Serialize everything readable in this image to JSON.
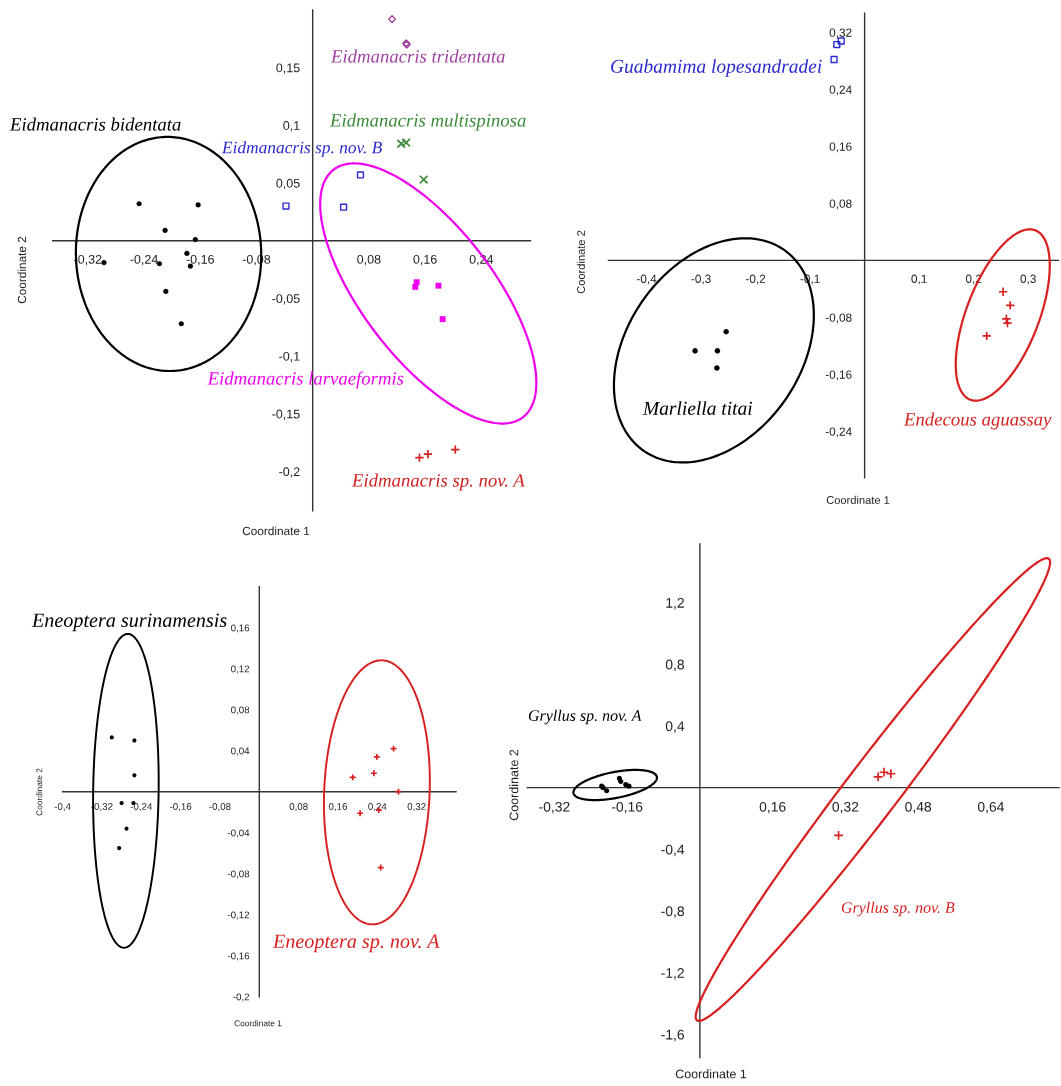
{
  "chart_data": [
    {
      "type": "scatter",
      "xlabel": "Coordinate 1",
      "ylabel": "Coordinate 2",
      "xlim": [
        -0.37,
        0.31
      ],
      "ylim": [
        -0.234,
        0.2
      ],
      "xticks": [
        {
          "value": -0.32,
          "label": "-0,32"
        },
        {
          "value": -0.24,
          "label": "-0,24"
        },
        {
          "value": -0.16,
          "label": "-0,16"
        },
        {
          "value": -0.08,
          "label": "-0,08"
        },
        {
          "value": 0.08,
          "label": "0,08"
        },
        {
          "value": 0.16,
          "label": "0,16"
        },
        {
          "value": 0.24,
          "label": "0,24"
        }
      ],
      "yticks": [
        {
          "value": 0.15,
          "label": "0,15"
        },
        {
          "value": 0.1,
          "label": "0,1"
        },
        {
          "value": 0.05,
          "label": "0,05"
        },
        {
          "value": -0.05,
          "label": "-0,05"
        },
        {
          "value": -0.1,
          "label": "-0,1"
        },
        {
          "value": -0.15,
          "label": "-0,15"
        },
        {
          "value": -0.2,
          "label": "-0,2"
        }
      ],
      "series": [
        {
          "name": "Eidmanacris bidentata",
          "color": "#000000",
          "marker": "circle",
          "x": [
            -0.247,
            -0.163,
            -0.21,
            -0.167,
            -0.179,
            -0.297,
            -0.218,
            -0.174,
            -0.209,
            -0.187
          ],
          "values": [
            0.032,
            0.031,
            0.009,
            0.001,
            -0.011,
            -0.019,
            -0.02,
            -0.022,
            -0.044,
            -0.072
          ]
        },
        {
          "name": "Eidmanacris sp. nov. B",
          "color": "#2a2ad0",
          "marker": "square",
          "x": [
            -0.038,
            0.044,
            0.068
          ],
          "values": [
            0.03,
            0.029,
            0.057
          ]
        },
        {
          "name": "Eidmanacris tridentata",
          "color": "#a040a0",
          "marker": "diamond",
          "x": [
            0.113,
            0.133,
            0.134
          ],
          "values": [
            0.192,
            0.171,
            0.17
          ]
        },
        {
          "name": "Eidmanacris multispinosa",
          "color": "#3a8a3a",
          "marker": "x",
          "x": [
            0.126,
            0.133,
            0.158
          ],
          "values": [
            0.084,
            0.085,
            0.053
          ]
        },
        {
          "name": "Eidmanacris larvaeformis",
          "color": "#ee00ee",
          "marker": "square",
          "x": [
            0.148,
            0.146,
            0.179,
            0.185
          ],
          "values": [
            -0.036,
            -0.04,
            -0.039,
            -0.068
          ]
        },
        {
          "name": "Eidmanacris sp. nov. A",
          "color": "#d02020",
          "marker": "cross",
          "x": [
            0.152,
            0.164,
            0.203
          ],
          "values": [
            -0.188,
            -0.185,
            -0.181
          ]
        }
      ]
    },
    {
      "type": "scatter",
      "xlabel": "Coordinate 1",
      "ylabel": "Coordinate 2",
      "xlim": [
        -0.47,
        0.356
      ],
      "ylim": [
        -0.305,
        0.347
      ],
      "xticks": [
        {
          "value": -0.4,
          "label": "-0,4"
        },
        {
          "value": -0.3,
          "label": "-0,3"
        },
        {
          "value": -0.2,
          "label": "-0,2"
        },
        {
          "value": -0.1,
          "label": "-0,1"
        },
        {
          "value": 0.1,
          "label": "0,1"
        },
        {
          "value": 0.2,
          "label": "0,2"
        },
        {
          "value": 0.3,
          "label": "0,3"
        }
      ],
      "yticks": [
        {
          "value": 0.32,
          "label": "0,32"
        },
        {
          "value": 0.24,
          "label": "0,24"
        },
        {
          "value": 0.16,
          "label": "0,16"
        },
        {
          "value": 0.08,
          "label": "0,08"
        },
        {
          "value": -0.08,
          "label": "-0,08"
        },
        {
          "value": -0.16,
          "label": "-0,16"
        },
        {
          "value": -0.24,
          "label": "-0,24"
        }
      ],
      "series": [
        {
          "name": "Guabamima lopesandradei",
          "color": "#2a2ad0",
          "marker": "square",
          "x": [
            -0.051,
            -0.043,
            -0.056
          ],
          "values": [
            0.303,
            0.308,
            0.282
          ]
        },
        {
          "name": "Marliella titai",
          "color": "#000000",
          "marker": "circle",
          "x": [
            -0.254,
            -0.311,
            -0.27,
            -0.271
          ],
          "values": [
            -0.1,
            -0.127,
            -0.127,
            -0.151
          ]
        },
        {
          "name": "Endecous aguassay",
          "color": "#d82020",
          "marker": "cross",
          "x": [
            0.254,
            0.267,
            0.26,
            0.262,
            0.224
          ],
          "values": [
            -0.044,
            -0.063,
            -0.082,
            -0.088,
            -0.106
          ]
        }
      ]
    },
    {
      "type": "scatter",
      "xlabel": "Coordinate 1",
      "ylabel": "Coordinate 2",
      "xlim": [
        -0.4,
        0.4
      ],
      "ylim": [
        -0.2,
        0.2
      ],
      "xticks": [
        {
          "value": -0.4,
          "label": "-0,4"
        },
        {
          "value": -0.32,
          "label": "-0,32"
        },
        {
          "value": -0.24,
          "label": "-0,24"
        },
        {
          "value": -0.16,
          "label": "-0,16"
        },
        {
          "value": -0.08,
          "label": "-0,08"
        },
        {
          "value": 0.08,
          "label": "0,08"
        },
        {
          "value": 0.16,
          "label": "0,16"
        },
        {
          "value": 0.24,
          "label": "0,24"
        },
        {
          "value": 0.32,
          "label": "0,32"
        }
      ],
      "yticks": [
        {
          "value": 0.16,
          "label": "0,16"
        },
        {
          "value": 0.12,
          "label": "0,12"
        },
        {
          "value": 0.08,
          "label": "0,08"
        },
        {
          "value": 0.04,
          "label": "0,04"
        },
        {
          "value": -0.04,
          "label": "-0,04"
        },
        {
          "value": -0.08,
          "label": "-0,08"
        },
        {
          "value": -0.12,
          "label": "-0,12"
        },
        {
          "value": -0.16,
          "label": "-0,16"
        },
        {
          "value": -0.2,
          "label": "-0,2"
        }
      ],
      "series": [
        {
          "name": "Eneoptera surinamensis",
          "color": "#000000",
          "marker": "circle",
          "x": [
            -0.3,
            -0.254,
            -0.254,
            -0.28,
            -0.256,
            -0.27,
            -0.285
          ],
          "values": [
            0.053,
            0.05,
            0.016,
            -0.011,
            -0.011,
            -0.036,
            -0.055
          ]
        },
        {
          "name": "Eneoptera sp. nov. A",
          "color": "#d82020",
          "marker": "cross",
          "x": [
            0.273,
            0.239,
            0.233,
            0.19,
            0.283,
            0.205,
            0.243,
            0.247
          ],
          "values": [
            0.042,
            0.034,
            0.018,
            0.014,
            0.0,
            -0.021,
            -0.018,
            -0.074
          ]
        }
      ]
    },
    {
      "type": "scatter",
      "xlabel": "Coordinate 1",
      "ylabel": "Coordinate 2",
      "xlim": [
        -0.38,
        0.79
      ],
      "ylim": [
        -1.75,
        1.58
      ],
      "xticks": [
        {
          "value": -0.32,
          "label": "-0,32"
        },
        {
          "value": -0.16,
          "label": "-0,16"
        },
        {
          "value": 0.16,
          "label": "0,16"
        },
        {
          "value": 0.32,
          "label": "0,32"
        },
        {
          "value": 0.48,
          "label": "0,48"
        },
        {
          "value": 0.64,
          "label": "0,64"
        }
      ],
      "yticks": [
        {
          "value": 1.2,
          "label": "1,2"
        },
        {
          "value": 0.8,
          "label": "0,8"
        },
        {
          "value": 0.4,
          "label": "0,4"
        },
        {
          "value": -0.4,
          "label": "-0,4"
        },
        {
          "value": -0.8,
          "label": "-0,8"
        },
        {
          "value": -1.2,
          "label": "-1,2"
        },
        {
          "value": -1.6,
          "label": "-1,6"
        }
      ],
      "series": [
        {
          "name": "Gryllus sp. nov. A",
          "color": "#000000",
          "marker": "circle",
          "x": [
            -0.216,
            -0.213,
            -0.205,
            -0.177,
            -0.174,
            -0.163,
            -0.156
          ],
          "values": [
            0.01,
            0.0,
            -0.02,
            0.06,
            0.04,
            0.02,
            0.01
          ]
        },
        {
          "name": "Gryllus sp. nov. B",
          "color": "#d82020",
          "marker": "cross",
          "x": [
            0.392,
            0.405,
            0.42,
            0.305
          ],
          "values": [
            0.07,
            0.1,
            0.09,
            -0.31
          ]
        }
      ]
    }
  ]
}
